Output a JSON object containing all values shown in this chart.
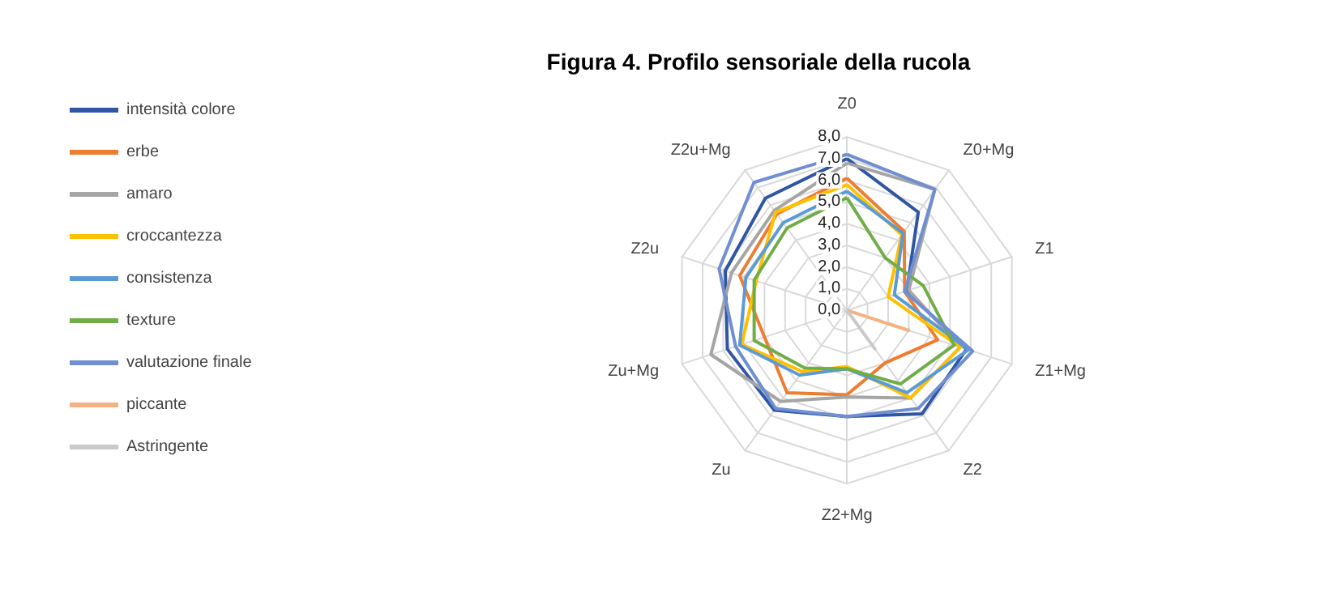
{
  "chart_data": {
    "type": "radar",
    "title": "Figura 4. Profilo sensoriale della rucola",
    "categories": [
      "Z0",
      "Z0+Mg",
      "Z1",
      "Z1+Mg",
      "Z2",
      "Z2+Mg",
      "Zu",
      "Zu+Mg",
      "Z2u",
      "Z2u+Mg"
    ],
    "ylim": [
      0,
      8
    ],
    "yticks": [
      {
        "value": 0,
        "label": "0,0"
      },
      {
        "value": 1,
        "label": "1,0"
      },
      {
        "value": 2,
        "label": "2,0"
      },
      {
        "value": 3,
        "label": "3,0"
      },
      {
        "value": 4,
        "label": "4,0"
      },
      {
        "value": 5,
        "label": "5,0"
      },
      {
        "value": 6,
        "label": "6,0"
      },
      {
        "value": 7,
        "label": "7,0"
      },
      {
        "value": 8,
        "label": "8,0"
      }
    ],
    "series": [
      {
        "name": "intensità colore",
        "color": "#2f55a4",
        "values": [
          7.0,
          5.6,
          2.9,
          5.8,
          5.9,
          4.9,
          5.7,
          5.8,
          5.9,
          6.4
        ]
      },
      {
        "name": "erbe",
        "color": "#ed7d31",
        "values": [
          6.1,
          4.5,
          2.8,
          4.4,
          3.0,
          3.9,
          4.7,
          4.0,
          5.2,
          5.5
        ]
      },
      {
        "name": "amaro",
        "color": "#a5a5a5",
        "values": [
          6.8,
          6.9,
          3.0,
          5.5,
          5.0,
          4.0,
          5.2,
          6.6,
          5.6,
          5.7
        ]
      },
      {
        "name": "croccantezza",
        "color": "#ffc000",
        "values": [
          5.8,
          4.3,
          2.0,
          5.5,
          5.0,
          2.6,
          3.5,
          5.1,
          4.4,
          5.6
        ]
      },
      {
        "name": "consistenza",
        "color": "#5b9bd5",
        "values": [
          5.5,
          4.4,
          2.3,
          5.9,
          4.7,
          2.7,
          3.7,
          5.2,
          4.9,
          5.0
        ]
      },
      {
        "name": "texture",
        "color": "#70ad47",
        "values": [
          5.2,
          3.0,
          3.7,
          5.2,
          4.2,
          2.7,
          3.3,
          4.5,
          4.5,
          4.7
        ]
      },
      {
        "name": "valutazione finale",
        "color": "#6f8fd0",
        "values": [
          7.2,
          6.9,
          2.8,
          6.1,
          5.6,
          4.9,
          5.6,
          5.4,
          6.2,
          7.3
        ]
      },
      {
        "name": "piccante",
        "color": "#f4b183",
        "values": [
          0,
          0,
          0,
          3.0,
          0,
          0,
          0,
          0,
          0,
          0
        ]
      },
      {
        "name": "Astringente",
        "color": "#c9c9c9",
        "values": [
          0,
          0,
          0,
          0,
          2.2,
          0,
          0,
          0,
          0,
          0
        ]
      }
    ],
    "grid": true,
    "legend": "left",
    "marker": "none",
    "line_style": "solid"
  }
}
